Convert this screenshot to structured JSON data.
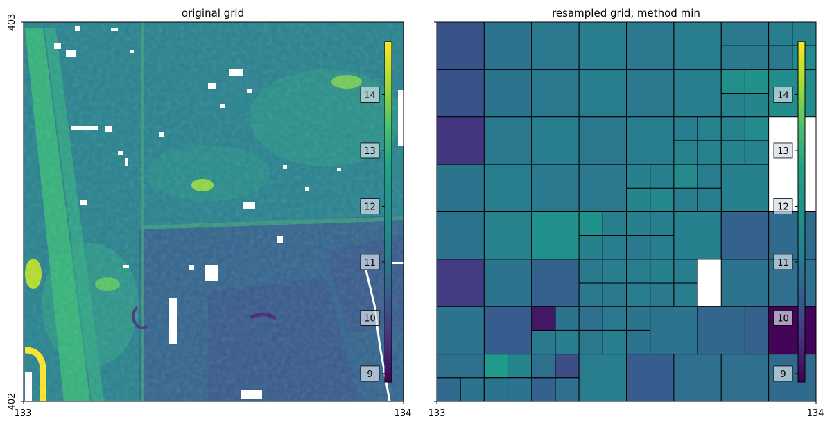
{
  "panels": [
    {
      "title": "original grid",
      "x_ticks": [
        "133",
        "134"
      ],
      "y_ticks": [
        "402",
        "403"
      ]
    },
    {
      "title": "resampled grid, method min",
      "x_ticks": [
        "133",
        "134"
      ]
    }
  ],
  "colorbar": {
    "colormap": "viridis",
    "ticks": [
      9,
      10,
      11,
      12,
      13,
      14
    ],
    "vmin": 8.85,
    "vmax": 14.95
  },
  "chart_data": [
    {
      "type": "heatmap",
      "title": "original grid",
      "xlim": [
        133,
        134
      ],
      "ylim": [
        402,
        403
      ],
      "colormap": "viridis",
      "colorbar_ticks": [
        9,
        10,
        11,
        12,
        13,
        14
      ],
      "value_range": [
        8.85,
        14.95
      ]
    },
    {
      "type": "heatmap",
      "title": "resampled grid, method min",
      "xlim": [
        133,
        134
      ],
      "colormap": "viridis",
      "colorbar_ticks": [
        9,
        10,
        11,
        12,
        13,
        14
      ],
      "value_range": [
        8.85,
        14.95
      ],
      "cells_top_to_bottom": [
        [
          10.2,
          10.9,
          11.0,
          11.1,
          11.0,
          11.1,
          11.0,
          11.1,
          11.2
        ],
        [
          10.2,
          10.9,
          11.0,
          11.1,
          11.0,
          11.1,
          11.0,
          11.0,
          11.6,
          11.8,
          11.9
        ],
        [
          9.7,
          11.0,
          11.1,
          11.0,
          11.1,
          11.1,
          11.3,
          11.3,
          11.4,
          11.3,
          11.6,
          11.7
        ],
        [
          10.9,
          11.1,
          11.0,
          11.0,
          11.2,
          11.1,
          11.3,
          11.3,
          11.3,
          11.3,
          11.4,
          11.5,
          11.6,
          11.1,
          11.2
        ],
        [
          10.9,
          11.3,
          11.9,
          11.9,
          11.1,
          11.2,
          11.1,
          11.1,
          11.1,
          11.2,
          11.1,
          11.0,
          11.1,
          11.2
        ],
        [
          9.8,
          10.9,
          10.5,
          11.0,
          11.1,
          11.1,
          11.2,
          11.1,
          11.0,
          11.0,
          11.1,
          11.0,
          11.1,
          10.5,
          10.9,
          10.8
        ],
        [
          10.9,
          10.4,
          9.2,
          10.9,
          10.8,
          11.0,
          10.9,
          11.1,
          11.0,
          11.1,
          11.0,
          11.1,
          10.9,
          10.9,
          10.6,
          10.5,
          10.7
        ],
        [
          10.8,
          12.4,
          11.4,
          10.8,
          10.1,
          9.2,
          11.3,
          10.7,
          9.25,
          9.2,
          10.5,
          10.7,
          8.9
        ],
        [
          10.5,
          10.6,
          10.8,
          10.7,
          10.8,
          10.5,
          10.0,
          11.1,
          10.4,
          10.8,
          10.8,
          10.7
        ],
        [
          10.7,
          10.9,
          10.9,
          11.0,
          10.9,
          10.9
        ]
      ]
    }
  ]
}
